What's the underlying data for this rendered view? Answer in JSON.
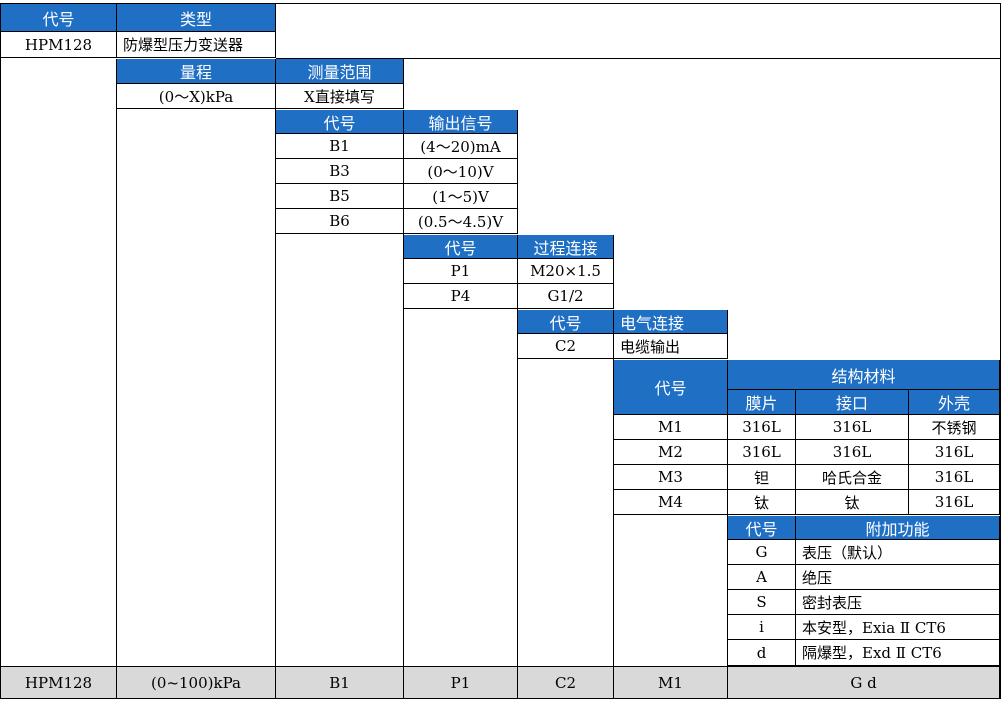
{
  "type_section": {
    "code_header": "代号",
    "type_header": "类型",
    "code": "HPM128",
    "type": "防爆型压力变送器"
  },
  "range_section": {
    "range_header": "量程",
    "method_header": "测量范围",
    "range": "(0～X)kPa",
    "method": "X直接填写"
  },
  "output_section": {
    "code_header": "代号",
    "signal_header": "输出信号",
    "rows": [
      {
        "code": "B1",
        "signal": "(4～20)mA"
      },
      {
        "code": "B3",
        "signal": "(0～10)V"
      },
      {
        "code": "B5",
        "signal": "(1～5)V"
      },
      {
        "code": "B6",
        "signal": "(0.5～4.5)V"
      }
    ]
  },
  "process_section": {
    "code_header": "代号",
    "conn_header": "过程连接",
    "rows": [
      {
        "code": "P1",
        "conn": "M20×1.5"
      },
      {
        "code": "P4",
        "conn": "G1/2"
      }
    ]
  },
  "electrical_section": {
    "code_header": "代号",
    "conn_header": "电气连接",
    "code": "C2",
    "conn": "电缆输出"
  },
  "material_section": {
    "code_header": "代号",
    "group_header": "结构材料",
    "sub_headers": [
      "膜片",
      "接口",
      "外壳"
    ],
    "rows": [
      {
        "code": "M1",
        "diaphragm": "316L",
        "port": "316L",
        "housing": "不锈钢"
      },
      {
        "code": "M2",
        "diaphragm": "316L",
        "port": "316L",
        "housing": "316L"
      },
      {
        "code": "M3",
        "diaphragm": "钽",
        "port": "哈氏合金",
        "housing": "316L"
      },
      {
        "code": "M4",
        "diaphragm": "钛",
        "port": "钛",
        "housing": "316L"
      }
    ]
  },
  "function_section": {
    "code_header": "代号",
    "func_header": "附加功能",
    "rows": [
      {
        "code": "G",
        "func": "表压（默认）"
      },
      {
        "code": "A",
        "func": "绝压"
      },
      {
        "code": "S",
        "func": "密封表压"
      },
      {
        "code": "i",
        "func": "本安型，Exia Ⅱ CT6"
      },
      {
        "code": "d",
        "func": "隔爆型，Exd Ⅱ CT6"
      }
    ]
  },
  "example": [
    "HPM128",
    "(0~100)kPa",
    "B1",
    "P1",
    "C2",
    "M1",
    "G d"
  ]
}
